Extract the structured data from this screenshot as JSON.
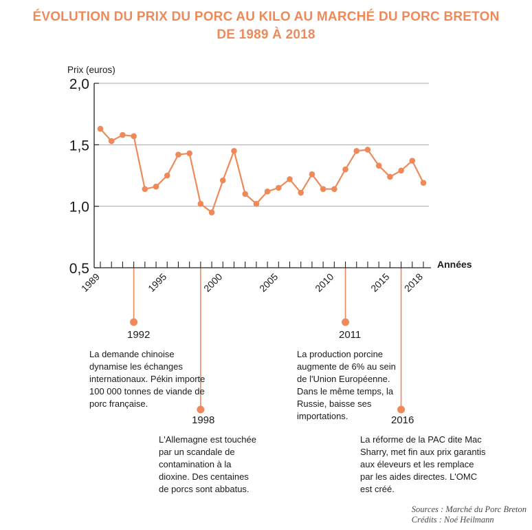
{
  "title": {
    "line1": "ÉVOLUTION DU PRIX DU PORC AU KILO AU MARCHÉ DU PORC BRETON",
    "line2": "DE 1989 À 2018"
  },
  "chart_data": {
    "type": "line",
    "ylabel": "Prix (euros)",
    "xlabel": "Années",
    "ylim": [
      0.5,
      2.0
    ],
    "xlim": [
      1989,
      2018
    ],
    "y_ticks": [
      "0,5",
      "1,0",
      "1,5",
      "2,0"
    ],
    "y_tick_values": [
      0.5,
      1.0,
      1.5,
      2.0
    ],
    "x_tick_labels": [
      "1989",
      "1995",
      "2000",
      "2005",
      "2010",
      "2015",
      "2018"
    ],
    "x_tick_values": [
      1989,
      1995,
      2000,
      2005,
      2010,
      2015,
      2018
    ],
    "grid": "horizontal",
    "series": [
      {
        "x": [
          1989,
          1990,
          1991,
          1992,
          1993,
          1994,
          1995,
          1996,
          1997,
          1998,
          1999,
          2000,
          2001,
          2002,
          2003,
          2004,
          2005,
          2006,
          2007,
          2008,
          2009,
          2010,
          2011,
          2012,
          2013,
          2014,
          2015,
          2016,
          2017,
          2018
        ],
        "y": [
          1.63,
          1.53,
          1.58,
          1.57,
          1.14,
          1.16,
          1.25,
          1.42,
          1.43,
          1.02,
          0.95,
          1.21,
          1.45,
          1.1,
          1.02,
          1.12,
          1.15,
          1.22,
          1.11,
          1.26,
          1.14,
          1.14,
          1.3,
          1.45,
          1.46,
          1.33,
          1.24,
          1.29,
          1.37,
          1.19
        ]
      }
    ],
    "colors": {
      "line": "#ee8a5a",
      "axis": "#222222",
      "grid": "#a8a8a8"
    }
  },
  "annotations": [
    {
      "year": "1992",
      "text": "La demande chinoise dynamise les échanges internationaux. Pékin importe 100 000 tonnes de viande de porc française."
    },
    {
      "year": "1998",
      "text": "L'Allemagne est touchée par un scandale de contamination à la dioxine. Des centaines de porcs sont abbatus."
    },
    {
      "year": "2011",
      "text": "La production porcine augmente de 6% au sein de l'Union Européenne. Dans le même temps, la Russie, baisse ses importations."
    },
    {
      "year": "2016",
      "text": "La réforme de la PAC dite Mac Sharry, met fin aux prix garantis aux éleveurs et les remplace par les aides directes. L'OMC est créé."
    }
  ],
  "credits": {
    "sources": "Sources : Marché du Porc Breton",
    "credits": "Crédits : Noé Heilmann"
  }
}
